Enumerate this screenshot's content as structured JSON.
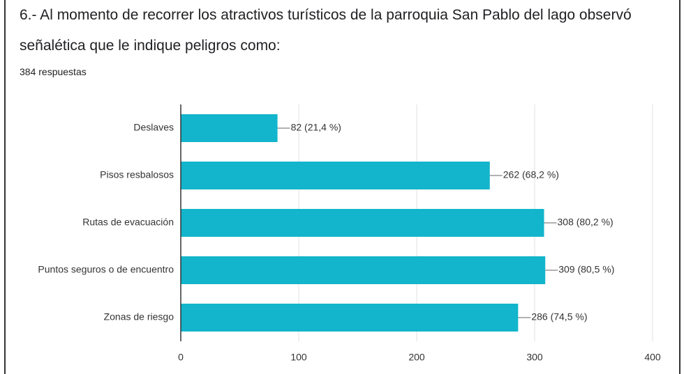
{
  "chart_data": {
    "type": "hbar",
    "title": [
      "6.- Al momento de recorrer los atractivos turísticos de la parroquia San Pablo del lago observó",
      "señalética que le indique peligros como:"
    ],
    "subtitle": "384 respuestas",
    "categories": [
      "Deslaves",
      "Pisos resbalosos",
      "Rutas de evacuación",
      "Puntos seguros o de encuentro",
      "Zonas de riesgo"
    ],
    "values": [
      82,
      262,
      308,
      309,
      286
    ],
    "value_labels": [
      "82 (21,4 %)",
      "262 (68,2 %)",
      "308 (80,2 %)",
      "309 (80,5 %)",
      "286 (74,5 %)"
    ],
    "color": "#12b5cb",
    "xlim": [
      0,
      400
    ],
    "xticks": [
      0,
      100,
      200,
      300,
      400
    ],
    "grid": true
  }
}
